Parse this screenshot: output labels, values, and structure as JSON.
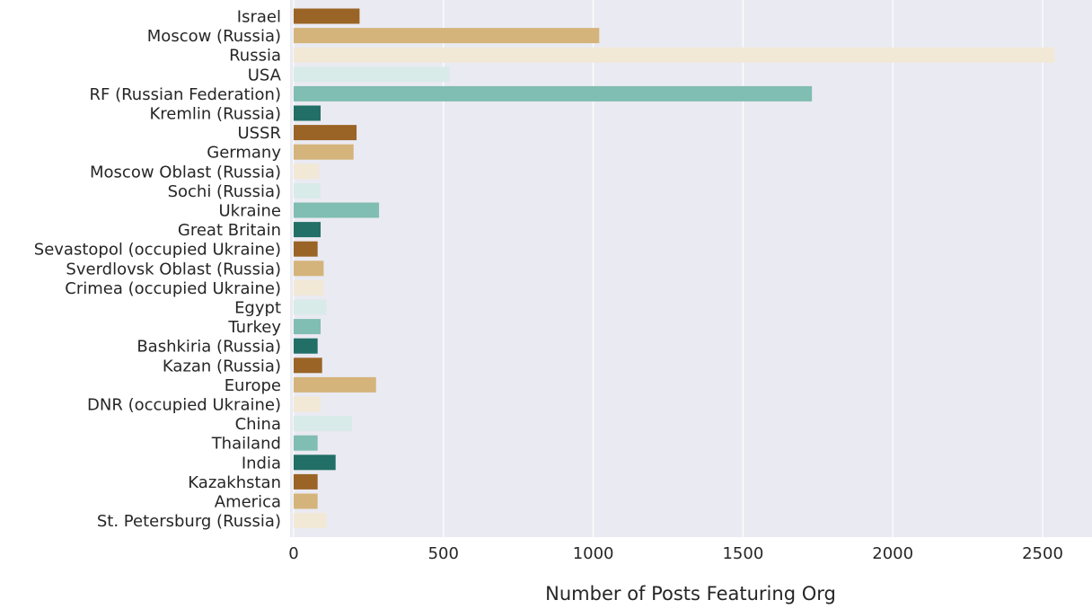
{
  "chart_data": {
    "type": "bar",
    "orientation": "horizontal",
    "title": "",
    "xlabel": "Number of Posts Featuring Org",
    "ylabel": "",
    "xlim": [
      0,
      2660
    ],
    "xticks": [
      0,
      500,
      1000,
      1500,
      2000,
      2500
    ],
    "grid": true,
    "legend": "none",
    "categories": [
      "Israel",
      "Moscow (Russia)",
      "Russia",
      "USA",
      "RF (Russian Federation)",
      "Kremlin (Russia)",
      "USSR",
      "Germany",
      "Moscow Oblast (Russia)",
      "Sochi (Russia)",
      "Ukraine",
      "Great Britain",
      "Sevastopol (occupied Ukraine)",
      "Sverdlovsk Oblast (Russia)",
      "Crimea (occupied Ukraine)",
      "Egypt",
      "Turkey",
      "Bashkiria (Russia)",
      "Kazan (Russia)",
      "Europe",
      "DNR (occupied Ukraine)",
      "China",
      "Thailand",
      "India",
      "Kazakhstan",
      "America",
      "St. Petersburg (Russia)"
    ],
    "values": [
      220,
      1020,
      2540,
      520,
      1730,
      90,
      210,
      200,
      85,
      90,
      285,
      90,
      80,
      100,
      100,
      110,
      90,
      80,
      95,
      275,
      90,
      195,
      80,
      140,
      80,
      80,
      110
    ],
    "palette": [
      "#9a6426",
      "#d4b47a",
      "#f2e8d6",
      "#d9ebe8",
      "#80bdb2",
      "#216f66"
    ]
  }
}
